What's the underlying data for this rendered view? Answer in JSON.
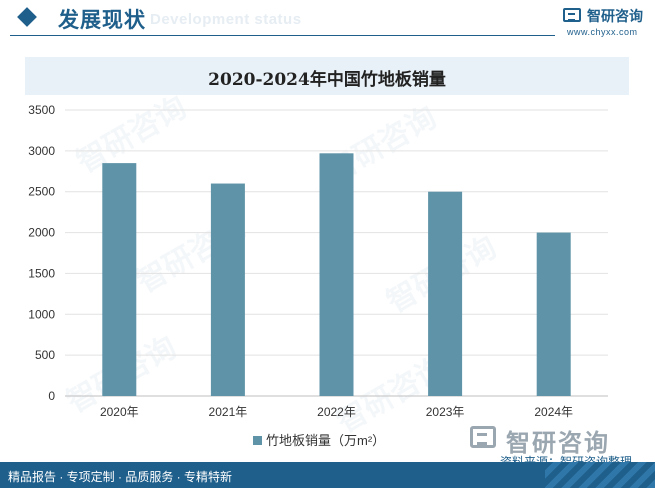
{
  "header": {
    "title": "发展现状",
    "subtitle": "Development status",
    "logo_name": "智研咨询",
    "logo_url": "www.chyxx.com"
  },
  "chart_data": {
    "type": "bar",
    "title": "2020-2024年中国竹地板销量",
    "categories": [
      "2020年",
      "2021年",
      "2022年",
      "2023年",
      "2024年"
    ],
    "series": [
      {
        "name": "竹地板销量（万m²）",
        "values": [
          2850,
          2600,
          2970,
          2500,
          2000
        ],
        "color": "#5e93a8"
      }
    ],
    "yticks": [
      0,
      500,
      1000,
      1500,
      2000,
      2500,
      3000,
      3500
    ],
    "ylim": [
      0,
      3500
    ],
    "grid": true,
    "legend_position": "bottom"
  },
  "source": {
    "logo_name": "智研咨询",
    "text": "资料来源：智研咨询整理"
  },
  "footer": {
    "text": "精品报告 · 专项定制 · 品质服务 · 专精特新"
  },
  "watermark": "智研咨询"
}
